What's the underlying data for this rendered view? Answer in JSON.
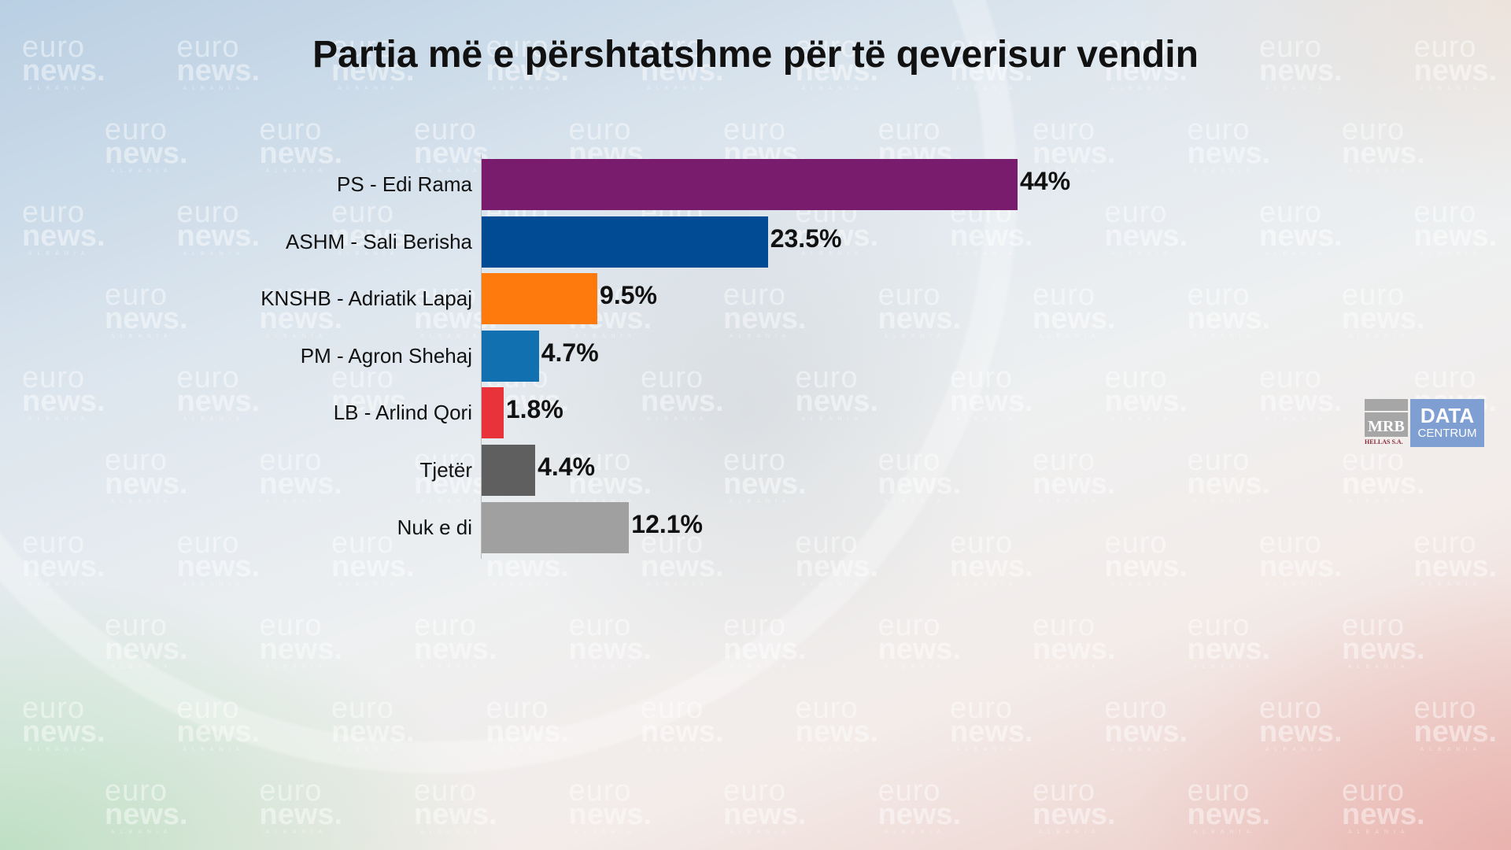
{
  "watermark": {
    "line1": "euro",
    "line2": "news.",
    "line3": "ALBANIA"
  },
  "logo": {
    "mrb": "MRB",
    "hellas": "HELLAS S.A.",
    "data": "DATA",
    "centrum": "CENTRUM"
  },
  "chart_data": {
    "type": "bar",
    "orientation": "horizontal",
    "title": "Partia më e përshtatshme për të qeverisur vendin",
    "categories": [
      "PS - Edi Rama",
      "ASHM - Sali Berisha",
      "KNSHB - Adriatik Lapaj",
      "PM - Agron Shehaj",
      "LB - Arlind Qori",
      "Tjetër",
      "Nuk e di"
    ],
    "values": [
      44,
      23.5,
      9.5,
      4.7,
      1.8,
      4.4,
      12.1
    ],
    "value_labels": [
      "44%",
      "23.5%",
      "9.5%",
      "4.7%",
      "1.8%",
      "4.4%",
      "12.1%"
    ],
    "colors": [
      "#7a1c6e",
      "#004b93",
      "#ff7a0d",
      "#1070b0",
      "#e8333a",
      "#5f5f5f",
      "#a0a0a0"
    ],
    "xlabel": "",
    "ylabel": "",
    "xlim": [
      0,
      44
    ],
    "grid": false,
    "legend": "none"
  }
}
